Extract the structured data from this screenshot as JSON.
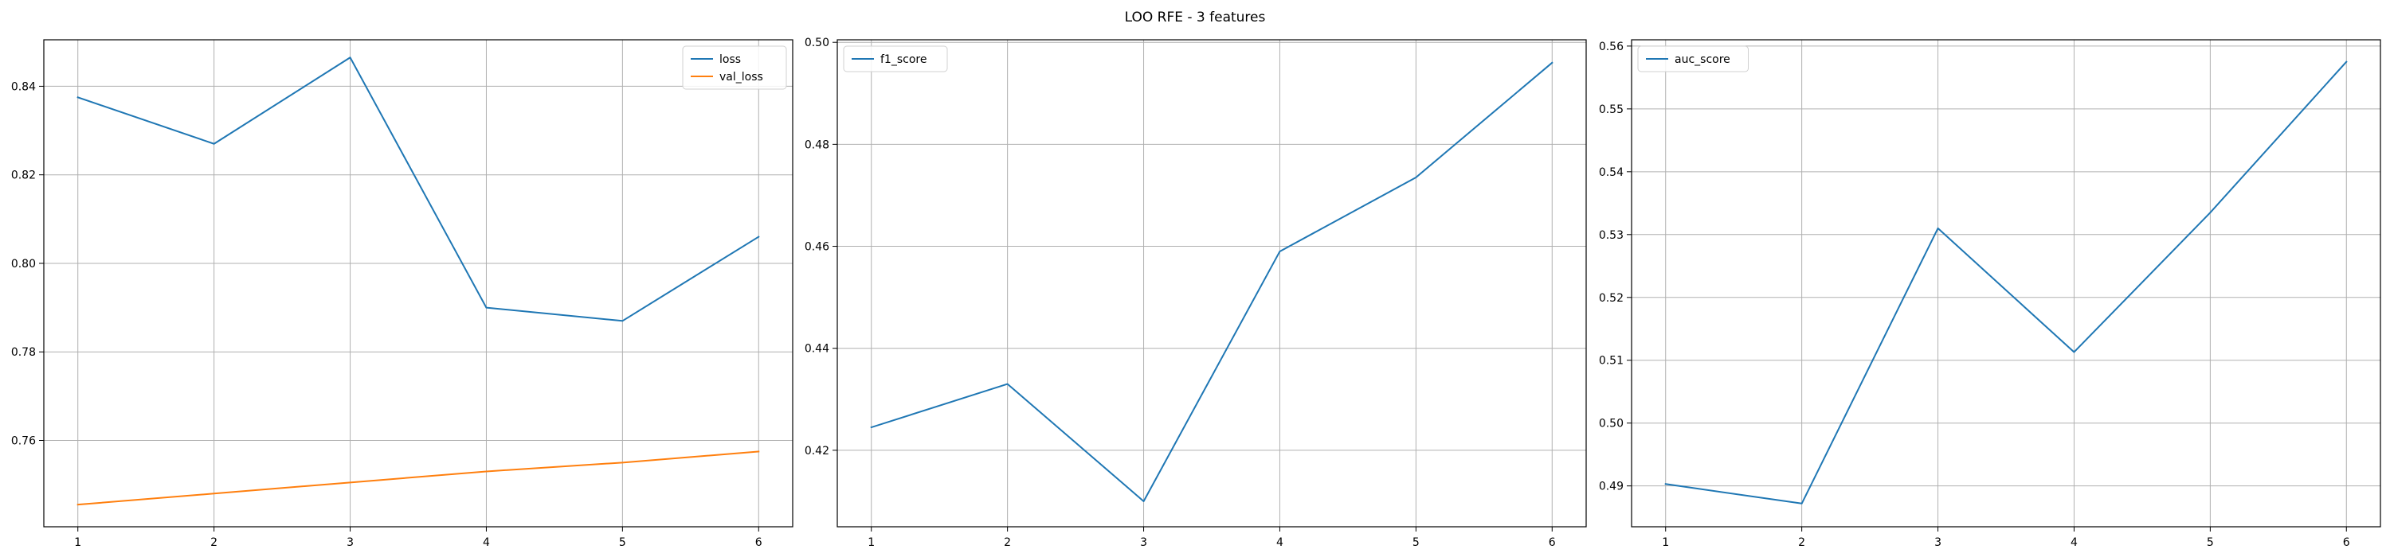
{
  "title": "LOO RFE - 3 features",
  "colors": {
    "blue": "#1f77b4",
    "orange": "#ff7f0e",
    "grid": "#b0b0b0",
    "axis": "#000000"
  },
  "chart_data": [
    {
      "type": "line",
      "x": [
        1,
        2,
        3,
        4,
        5,
        6
      ],
      "xticks": [
        1,
        2,
        3,
        4,
        5,
        6
      ],
      "xlim": [
        0.75,
        6.25
      ],
      "ylim": [
        0.7405,
        0.8505
      ],
      "yticks": [
        0.76,
        0.78,
        0.8,
        0.82,
        0.84
      ],
      "ytick_decimals": 2,
      "grid": true,
      "legend_position": "top-right",
      "series": [
        {
          "name": "loss",
          "color": "#1f77b4",
          "values": [
            0.8375,
            0.827,
            0.8465,
            0.79,
            0.787,
            0.806
          ]
        },
        {
          "name": "val_loss",
          "color": "#ff7f0e",
          "values": [
            0.7455,
            0.748,
            0.7505,
            0.753,
            0.755,
            0.7575
          ]
        }
      ]
    },
    {
      "type": "line",
      "x": [
        1,
        2,
        3,
        4,
        5,
        6
      ],
      "xticks": [
        1,
        2,
        3,
        4,
        5,
        6
      ],
      "xlim": [
        0.75,
        6.25
      ],
      "ylim": [
        0.405,
        0.5005
      ],
      "yticks": [
        0.42,
        0.44,
        0.46,
        0.48,
        0.5
      ],
      "ytick_decimals": 2,
      "grid": true,
      "legend_position": "top-left",
      "series": [
        {
          "name": "f1_score",
          "color": "#1f77b4",
          "values": [
            0.4245,
            0.433,
            0.41,
            0.459,
            0.4735,
            0.496
          ]
        }
      ]
    },
    {
      "type": "line",
      "x": [
        1,
        2,
        3,
        4,
        5,
        6
      ],
      "xticks": [
        1,
        2,
        3,
        4,
        5,
        6
      ],
      "xlim": [
        0.75,
        6.25
      ],
      "ylim": [
        0.4835,
        0.561
      ],
      "yticks": [
        0.49,
        0.5,
        0.51,
        0.52,
        0.53,
        0.54,
        0.55,
        0.56
      ],
      "ytick_decimals": 2,
      "grid": true,
      "legend_position": "top-left",
      "series": [
        {
          "name": "auc_score",
          "color": "#1f77b4",
          "values": [
            0.4903,
            0.4872,
            0.531,
            0.5113,
            0.5335,
            0.5575
          ]
        }
      ]
    }
  ]
}
